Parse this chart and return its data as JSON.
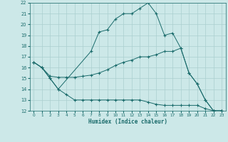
{
  "xlabel": "Humidex (Indice chaleur)",
  "background_color": "#cce8e8",
  "grid_color": "#aacfcf",
  "line_color": "#1a6b6b",
  "xlim": [
    -0.5,
    23.5
  ],
  "ylim": [
    12,
    22
  ],
  "xticks": [
    0,
    1,
    2,
    3,
    4,
    5,
    6,
    7,
    8,
    9,
    10,
    11,
    12,
    13,
    14,
    15,
    16,
    17,
    18,
    19,
    20,
    21,
    22,
    23
  ],
  "yticks": [
    12,
    13,
    14,
    15,
    16,
    17,
    18,
    19,
    20,
    21,
    22
  ],
  "line1": {
    "x": [
      0,
      1,
      2,
      3,
      7,
      8,
      9,
      10,
      11,
      12,
      13,
      14,
      15,
      16,
      17,
      18,
      19,
      20,
      21,
      22,
      23
    ],
    "y": [
      16.5,
      16.0,
      15.0,
      14.0,
      17.5,
      19.3,
      19.5,
      20.5,
      21.0,
      21.0,
      21.5,
      22.0,
      21.0,
      19.0,
      19.2,
      17.8,
      15.5,
      14.5,
      13.0,
      12.0,
      12.0
    ]
  },
  "line2": {
    "x": [
      0,
      1,
      2,
      3,
      4,
      5,
      6,
      7,
      8,
      9,
      10,
      11,
      12,
      13,
      14,
      15,
      16,
      17,
      18,
      19,
      20,
      21,
      22,
      23
    ],
    "y": [
      16.5,
      16.0,
      15.2,
      15.1,
      15.1,
      15.1,
      15.2,
      15.3,
      15.5,
      15.8,
      16.2,
      16.5,
      16.7,
      17.0,
      17.0,
      17.2,
      17.5,
      17.5,
      17.8,
      15.5,
      14.5,
      13.0,
      12.0,
      12.0
    ]
  },
  "line3": {
    "x": [
      0,
      1,
      2,
      3,
      4,
      5,
      6,
      7,
      8,
      9,
      10,
      11,
      12,
      13,
      14,
      15,
      16,
      17,
      18,
      19,
      20,
      21,
      22,
      23
    ],
    "y": [
      16.5,
      16.0,
      15.0,
      14.0,
      13.5,
      13.0,
      13.0,
      13.0,
      13.0,
      13.0,
      13.0,
      13.0,
      13.0,
      13.0,
      12.8,
      12.6,
      12.5,
      12.5,
      12.5,
      12.5,
      12.5,
      12.2,
      12.0,
      12.0
    ]
  }
}
